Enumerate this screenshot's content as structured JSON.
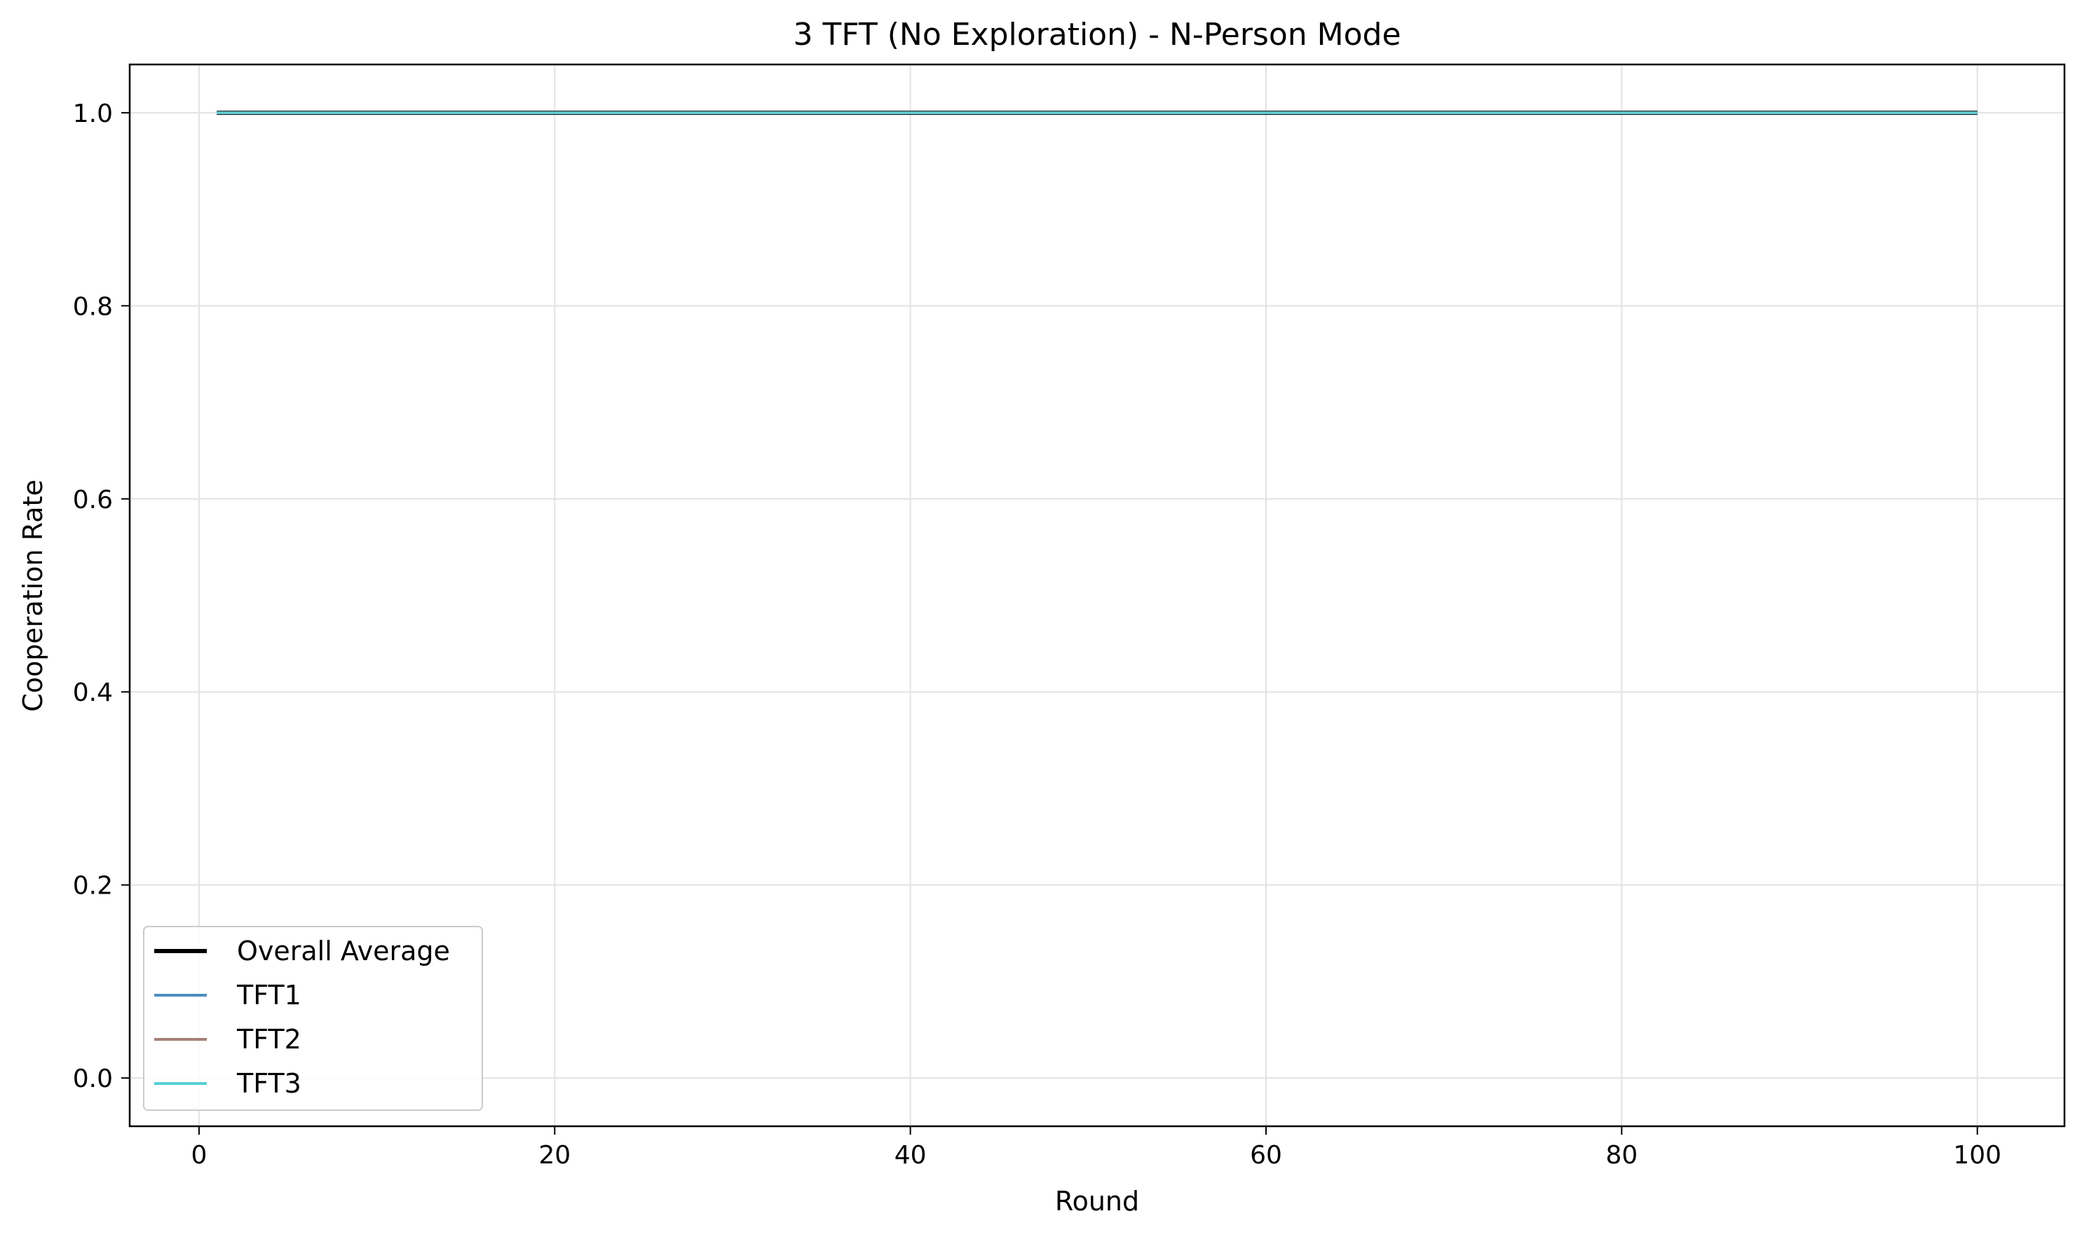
{
  "chart_data": {
    "type": "line",
    "title": "3 TFT (No Exploration) - N-Person Mode",
    "xlabel": "Round",
    "ylabel": "Cooperation Rate",
    "xlim": [
      -3.9,
      104.9
    ],
    "ylim": [
      -0.05,
      1.05
    ],
    "xticks": [
      0,
      20,
      40,
      60,
      80,
      100
    ],
    "xtick_labels": [
      "0",
      "20",
      "40",
      "60",
      "80",
      "100"
    ],
    "yticks": [
      0.0,
      0.2,
      0.4,
      0.6,
      0.8,
      1.0
    ],
    "ytick_labels": [
      "0.0",
      "0.2",
      "0.4",
      "0.6",
      "0.8",
      "1.0"
    ],
    "grid": true,
    "legend_position": "lower-left",
    "series": [
      {
        "name": "Overall Average",
        "color": "#000000",
        "x": [
          1,
          100
        ],
        "y": [
          1.0,
          1.0
        ]
      },
      {
        "name": "TFT1",
        "color": "#4c8ebf",
        "x": [
          1,
          100
        ],
        "y": [
          1.0,
          1.0
        ]
      },
      {
        "name": "TFT2",
        "color": "#a67f78",
        "x": [
          1,
          100
        ],
        "y": [
          1.0,
          1.0
        ]
      },
      {
        "name": "TFT3",
        "color": "#56cfd6",
        "x": [
          1,
          100
        ],
        "y": [
          1.0,
          1.0
        ]
      }
    ]
  }
}
